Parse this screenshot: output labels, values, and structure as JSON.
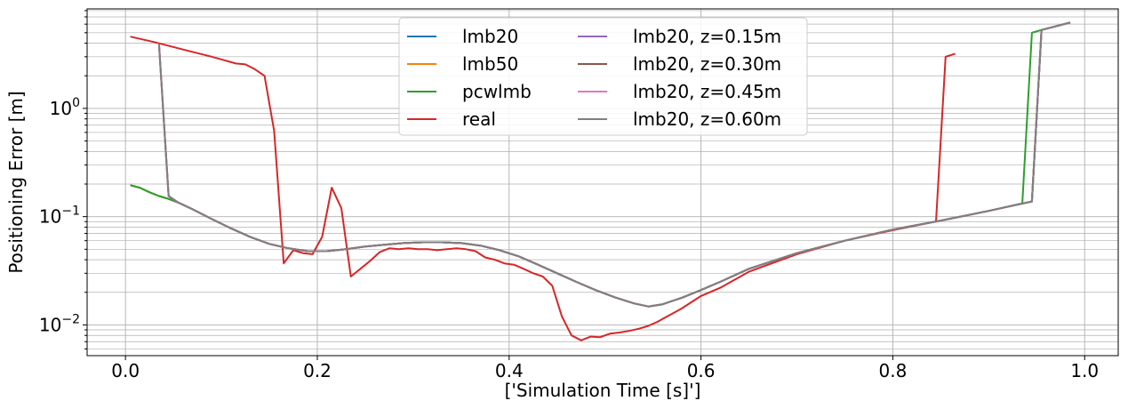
{
  "chart_data": {
    "type": "line",
    "title": "",
    "xlabel": "['Simulation Time [s]']",
    "ylabel": "Positioning Error [m]",
    "yscale": "log",
    "xlim": [
      -0.04,
      1.035
    ],
    "ylim": [
      0.0052,
      8.3
    ],
    "x_ticks": [
      0.0,
      0.2,
      0.4,
      0.6,
      0.8,
      1.0
    ],
    "x_tick_labels": [
      "0.0",
      "0.2",
      "0.4",
      "0.6",
      "0.8",
      "1.0"
    ],
    "y_major_ticks": [
      0.01,
      0.1,
      1
    ],
    "y_tick_labels": [
      {
        "base": "10",
        "exp": "−2"
      },
      {
        "base": "10",
        "exp": "−1"
      },
      {
        "base": "10",
        "exp": "0"
      }
    ],
    "grid": "both, major and minor on y",
    "legend": {
      "position": "top-center",
      "columns": 2
    },
    "series": [
      {
        "name": "lmb20",
        "color": "#1f77b4",
        "x": [
          0.005,
          0.015,
          0.025,
          0.035,
          0.045,
          0.055,
          0.07,
          0.09,
          0.11,
          0.13,
          0.15,
          0.17,
          0.19,
          0.21,
          0.23,
          0.25,
          0.27,
          0.29,
          0.31,
          0.33,
          0.35,
          0.37,
          0.39,
          0.41,
          0.43,
          0.45,
          0.47,
          0.49,
          0.51,
          0.53,
          0.545,
          0.56,
          0.58,
          0.6,
          0.62,
          0.65,
          0.7,
          0.75,
          0.8,
          0.85,
          0.9,
          0.945,
          0.955,
          0.985
        ],
        "y": [
          0.195,
          0.185,
          0.168,
          0.155,
          0.146,
          0.135,
          0.117,
          0.095,
          0.078,
          0.065,
          0.056,
          0.051,
          0.048,
          0.048,
          0.05,
          0.053,
          0.055,
          0.057,
          0.058,
          0.058,
          0.057,
          0.054,
          0.049,
          0.043,
          0.036,
          0.03,
          0.025,
          0.021,
          0.018,
          0.0158,
          0.0148,
          0.0155,
          0.0178,
          0.021,
          0.025,
          0.033,
          0.046,
          0.06,
          0.076,
          0.092,
          0.113,
          0.138,
          5.3,
          6.2
        ]
      },
      {
        "name": "lmb50",
        "color": "#ff7f0e",
        "x": [
          0.005,
          0.015,
          0.025,
          0.035,
          0.045,
          0.055,
          0.07,
          0.09,
          0.11,
          0.13,
          0.15,
          0.17,
          0.19,
          0.21,
          0.23,
          0.25,
          0.27,
          0.29,
          0.31,
          0.33,
          0.35,
          0.37,
          0.39,
          0.41,
          0.43,
          0.45,
          0.47,
          0.49,
          0.51,
          0.53,
          0.545,
          0.56,
          0.58,
          0.6,
          0.62,
          0.65,
          0.7,
          0.75,
          0.8,
          0.85,
          0.9,
          0.945,
          0.955,
          0.985
        ],
        "y": [
          0.195,
          0.185,
          0.168,
          0.155,
          0.146,
          0.135,
          0.117,
          0.095,
          0.078,
          0.065,
          0.056,
          0.051,
          0.048,
          0.048,
          0.05,
          0.053,
          0.055,
          0.057,
          0.058,
          0.058,
          0.057,
          0.054,
          0.049,
          0.043,
          0.036,
          0.03,
          0.025,
          0.021,
          0.018,
          0.0158,
          0.0148,
          0.0155,
          0.0178,
          0.021,
          0.025,
          0.033,
          0.046,
          0.06,
          0.076,
          0.092,
          0.113,
          0.138,
          5.3,
          6.2
        ]
      },
      {
        "name": "pcwlmb",
        "color": "#2ca02c",
        "x": [
          0.005,
          0.015,
          0.025,
          0.035,
          0.045,
          0.055,
          0.07,
          0.09,
          0.11,
          0.13,
          0.15,
          0.17,
          0.19,
          0.21,
          0.23,
          0.25,
          0.27,
          0.29,
          0.31,
          0.33,
          0.35,
          0.37,
          0.39,
          0.41,
          0.43,
          0.45,
          0.47,
          0.49,
          0.51,
          0.53,
          0.545,
          0.56,
          0.58,
          0.6,
          0.62,
          0.65,
          0.7,
          0.75,
          0.8,
          0.85,
          0.9,
          0.935,
          0.945,
          0.955,
          0.985
        ],
        "y": [
          0.195,
          0.185,
          0.168,
          0.155,
          0.146,
          0.135,
          0.117,
          0.095,
          0.078,
          0.065,
          0.056,
          0.051,
          0.048,
          0.048,
          0.05,
          0.053,
          0.055,
          0.057,
          0.058,
          0.058,
          0.057,
          0.054,
          0.049,
          0.043,
          0.036,
          0.03,
          0.025,
          0.021,
          0.018,
          0.0158,
          0.0148,
          0.0155,
          0.0178,
          0.021,
          0.025,
          0.033,
          0.046,
          0.06,
          0.076,
          0.092,
          0.113,
          0.133,
          5.0,
          5.3,
          6.2
        ]
      },
      {
        "name": "real",
        "color": "#d62728",
        "x": [
          0.005,
          0.03,
          0.06,
          0.09,
          0.115,
          0.125,
          0.135,
          0.145,
          0.155,
          0.165,
          0.175,
          0.185,
          0.195,
          0.205,
          0.215,
          0.225,
          0.235,
          0.245,
          0.255,
          0.265,
          0.275,
          0.285,
          0.295,
          0.305,
          0.315,
          0.325,
          0.335,
          0.345,
          0.355,
          0.365,
          0.375,
          0.385,
          0.395,
          0.405,
          0.415,
          0.425,
          0.435,
          0.445,
          0.455,
          0.465,
          0.475,
          0.485,
          0.495,
          0.505,
          0.515,
          0.525,
          0.535,
          0.545,
          0.555,
          0.565,
          0.58,
          0.6,
          0.62,
          0.65,
          0.7,
          0.75,
          0.8,
          0.845,
          0.855,
          0.865
        ],
        "y": [
          4.6,
          4.1,
          3.5,
          3.0,
          2.6,
          2.55,
          2.3,
          2.0,
          0.62,
          0.037,
          0.049,
          0.046,
          0.045,
          0.065,
          0.185,
          0.12,
          0.028,
          0.033,
          0.039,
          0.047,
          0.051,
          0.05,
          0.051,
          0.05,
          0.05,
          0.049,
          0.05,
          0.051,
          0.05,
          0.048,
          0.042,
          0.04,
          0.037,
          0.036,
          0.033,
          0.03,
          0.028,
          0.023,
          0.012,
          0.008,
          0.0072,
          0.0078,
          0.0077,
          0.0083,
          0.0085,
          0.0088,
          0.0092,
          0.0098,
          0.0107,
          0.012,
          0.0142,
          0.0185,
          0.022,
          0.031,
          0.045,
          0.06,
          0.075,
          0.09,
          3.0,
          3.2
        ]
      },
      {
        "name": "lmb20, z=0.15m",
        "color": "#9467bd",
        "x": [
          0.035,
          0.045,
          0.055,
          0.07,
          0.09,
          0.11,
          0.13,
          0.15,
          0.17,
          0.19,
          0.21,
          0.23,
          0.25,
          0.27,
          0.29,
          0.31,
          0.33,
          0.35,
          0.37,
          0.39,
          0.41,
          0.43,
          0.45,
          0.47,
          0.49,
          0.51,
          0.53,
          0.545,
          0.56,
          0.58,
          0.6,
          0.62,
          0.65,
          0.7,
          0.75,
          0.8,
          0.85,
          0.9,
          0.945,
          0.955,
          0.985
        ],
        "y": [
          3.9,
          0.155,
          0.135,
          0.117,
          0.095,
          0.078,
          0.065,
          0.056,
          0.051,
          0.048,
          0.048,
          0.05,
          0.053,
          0.055,
          0.057,
          0.058,
          0.058,
          0.057,
          0.054,
          0.049,
          0.043,
          0.036,
          0.03,
          0.025,
          0.021,
          0.018,
          0.0158,
          0.0148,
          0.0155,
          0.0178,
          0.021,
          0.025,
          0.033,
          0.046,
          0.06,
          0.076,
          0.092,
          0.113,
          0.138,
          5.3,
          6.2
        ]
      },
      {
        "name": "lmb20, z=0.30m",
        "color": "#8c564b",
        "x": [
          0.035,
          0.045,
          0.055,
          0.07,
          0.09,
          0.11,
          0.13,
          0.15,
          0.17,
          0.19,
          0.21,
          0.23,
          0.25,
          0.27,
          0.29,
          0.31,
          0.33,
          0.35,
          0.37,
          0.39,
          0.41,
          0.43,
          0.45,
          0.47,
          0.49,
          0.51,
          0.53,
          0.545,
          0.56,
          0.58,
          0.6,
          0.62,
          0.65,
          0.7,
          0.75,
          0.8,
          0.85,
          0.9,
          0.945,
          0.955,
          0.985
        ],
        "y": [
          3.9,
          0.155,
          0.135,
          0.117,
          0.095,
          0.078,
          0.065,
          0.056,
          0.051,
          0.048,
          0.048,
          0.05,
          0.053,
          0.055,
          0.057,
          0.058,
          0.058,
          0.057,
          0.054,
          0.049,
          0.043,
          0.036,
          0.03,
          0.025,
          0.021,
          0.018,
          0.0158,
          0.0148,
          0.0155,
          0.0178,
          0.021,
          0.025,
          0.033,
          0.046,
          0.06,
          0.076,
          0.092,
          0.113,
          0.138,
          5.3,
          6.2
        ]
      },
      {
        "name": "lmb20, z=0.45m",
        "color": "#e377c2",
        "x": [
          0.035,
          0.045,
          0.055,
          0.07,
          0.09,
          0.11,
          0.13,
          0.15,
          0.17,
          0.19,
          0.21,
          0.23,
          0.25,
          0.27,
          0.29,
          0.31,
          0.33,
          0.35,
          0.37,
          0.39,
          0.41,
          0.43,
          0.45,
          0.47,
          0.49,
          0.51,
          0.53,
          0.545,
          0.56,
          0.58,
          0.6,
          0.62,
          0.65,
          0.7,
          0.75,
          0.8,
          0.85,
          0.9,
          0.945,
          0.955,
          0.985
        ],
        "y": [
          3.9,
          0.155,
          0.135,
          0.117,
          0.095,
          0.078,
          0.065,
          0.056,
          0.051,
          0.048,
          0.048,
          0.05,
          0.053,
          0.055,
          0.057,
          0.058,
          0.058,
          0.057,
          0.054,
          0.049,
          0.043,
          0.036,
          0.03,
          0.025,
          0.021,
          0.018,
          0.0158,
          0.0148,
          0.0155,
          0.0178,
          0.021,
          0.025,
          0.033,
          0.046,
          0.06,
          0.076,
          0.092,
          0.113,
          0.138,
          5.3,
          6.2
        ]
      },
      {
        "name": "lmb20, z=0.60m",
        "color": "#7f7f7f",
        "x": [
          0.035,
          0.045,
          0.055,
          0.07,
          0.09,
          0.11,
          0.13,
          0.15,
          0.17,
          0.19,
          0.21,
          0.23,
          0.25,
          0.27,
          0.29,
          0.31,
          0.33,
          0.35,
          0.37,
          0.39,
          0.41,
          0.43,
          0.45,
          0.47,
          0.49,
          0.51,
          0.53,
          0.545,
          0.56,
          0.58,
          0.6,
          0.62,
          0.65,
          0.7,
          0.75,
          0.8,
          0.85,
          0.9,
          0.945,
          0.955,
          0.985
        ],
        "y": [
          3.9,
          0.155,
          0.135,
          0.117,
          0.095,
          0.078,
          0.065,
          0.056,
          0.051,
          0.048,
          0.048,
          0.05,
          0.053,
          0.055,
          0.057,
          0.058,
          0.058,
          0.057,
          0.054,
          0.049,
          0.043,
          0.036,
          0.03,
          0.025,
          0.021,
          0.018,
          0.0158,
          0.0148,
          0.0155,
          0.0178,
          0.021,
          0.025,
          0.033,
          0.046,
          0.06,
          0.076,
          0.092,
          0.113,
          0.138,
          5.3,
          6.2
        ]
      }
    ]
  }
}
